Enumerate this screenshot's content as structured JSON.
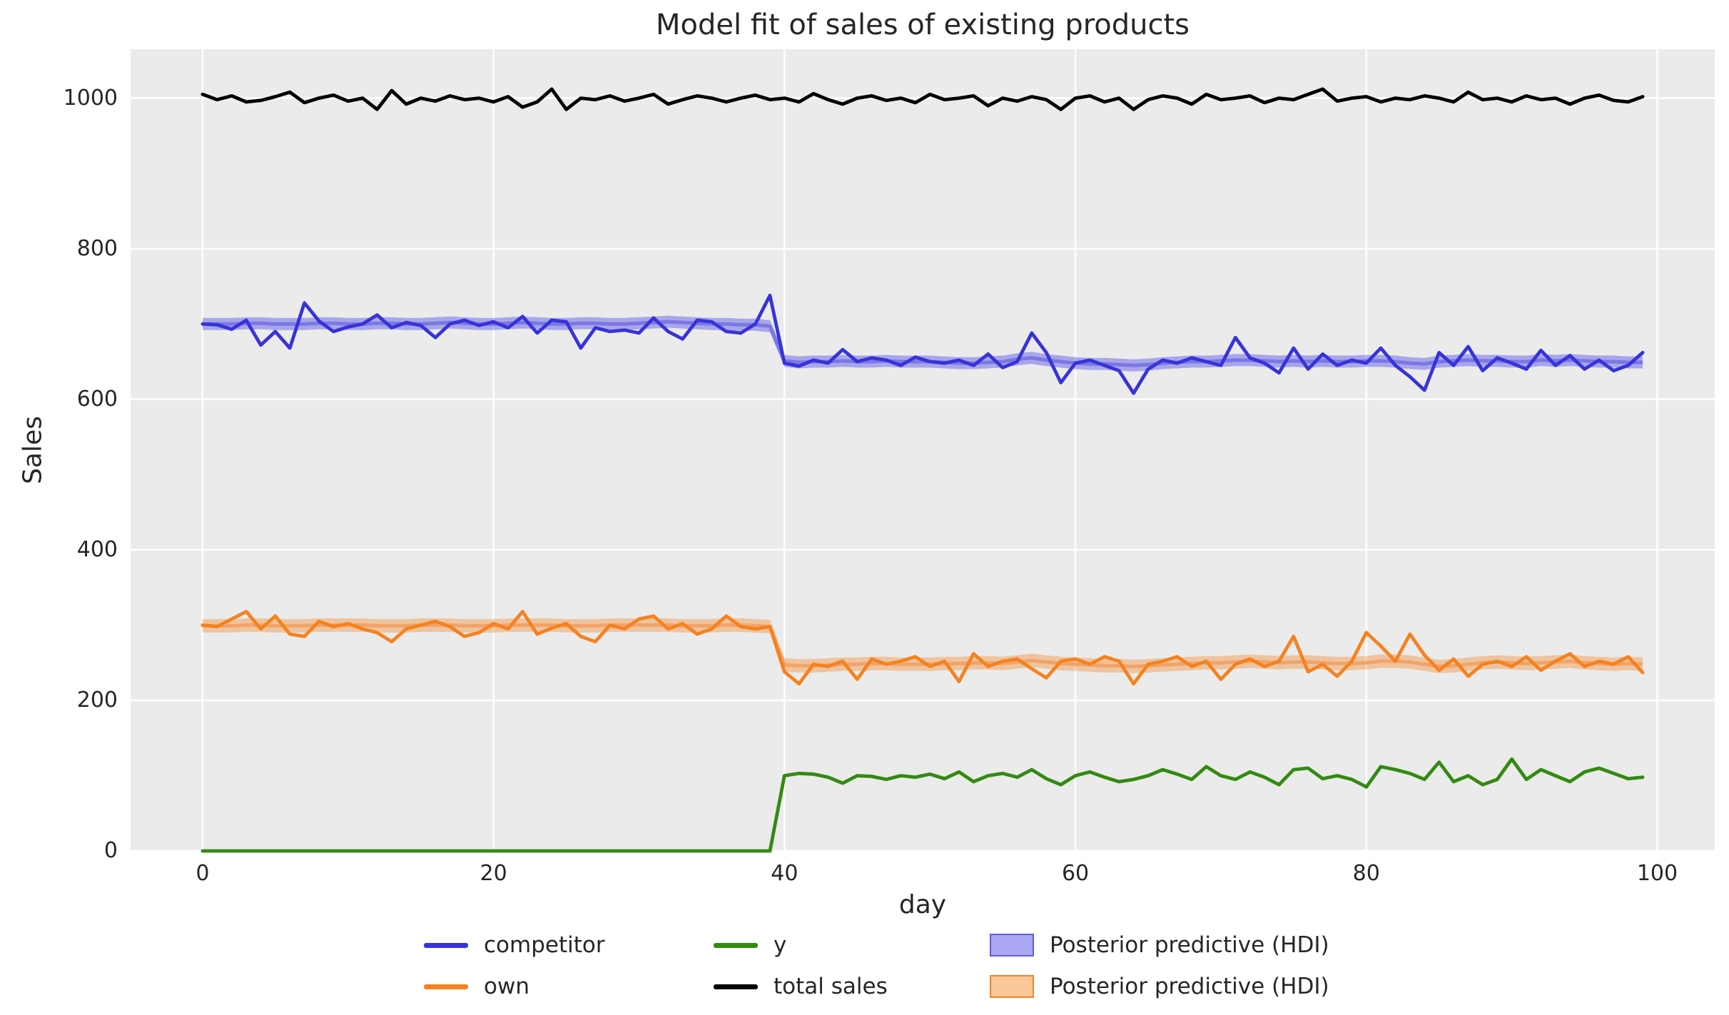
{
  "chart_data": {
    "type": "line",
    "title": "Model fit of sales of existing products",
    "xlabel": "day",
    "ylabel": "Sales",
    "xlim": [
      -4.95,
      103.95
    ],
    "ylim": [
      0,
      1065
    ],
    "x_ticks": [
      0,
      20,
      40,
      60,
      80,
      100
    ],
    "y_ticks": [
      0,
      200,
      400,
      600,
      800,
      1000
    ],
    "grid": true,
    "plot_background": "#ebebeb",
    "grid_color": "#ffffff",
    "legend_position": "below-axes",
    "x": [
      0,
      1,
      2,
      3,
      4,
      5,
      6,
      7,
      8,
      9,
      10,
      11,
      12,
      13,
      14,
      15,
      16,
      17,
      18,
      19,
      20,
      21,
      22,
      23,
      24,
      25,
      26,
      27,
      28,
      29,
      30,
      31,
      32,
      33,
      34,
      35,
      36,
      37,
      38,
      39,
      40,
      41,
      42,
      43,
      44,
      45,
      46,
      47,
      48,
      49,
      50,
      51,
      52,
      53,
      54,
      55,
      56,
      57,
      58,
      59,
      60,
      61,
      62,
      63,
      64,
      65,
      66,
      67,
      68,
      69,
      70,
      71,
      72,
      73,
      74,
      75,
      76,
      77,
      78,
      79,
      80,
      81,
      82,
      83,
      84,
      85,
      86,
      87,
      88,
      89,
      90,
      91,
      92,
      93,
      94,
      95,
      96,
      97,
      98,
      99
    ],
    "series": [
      {
        "name": "competitor",
        "color": "#3733d9",
        "values": [
          700,
          699,
          693,
          705,
          672,
          690,
          668,
          728,
          704,
          690,
          696,
          700,
          712,
          695,
          702,
          698,
          682,
          700,
          705,
          698,
          703,
          695,
          710,
          688,
          705,
          703,
          668,
          695,
          690,
          692,
          688,
          708,
          690,
          680,
          705,
          703,
          690,
          688,
          700,
          738,
          648,
          644,
          652,
          648,
          666,
          650,
          655,
          652,
          645,
          656,
          650,
          648,
          652,
          645,
          660,
          642,
          650,
          688,
          662,
          622,
          648,
          652,
          645,
          638,
          608,
          640,
          652,
          648,
          655,
          650,
          645,
          682,
          655,
          648,
          635,
          668,
          640,
          660,
          645,
          652,
          648,
          668,
          645,
          630,
          612,
          662,
          645,
          670,
          638,
          655,
          648,
          640,
          665,
          645,
          658,
          640,
          652,
          638,
          645,
          662
        ]
      },
      {
        "name": "own",
        "color": "#f5821f",
        "values": [
          300,
          298,
          308,
          318,
          295,
          312,
          288,
          285,
          305,
          298,
          302,
          295,
          290,
          278,
          295,
          300,
          305,
          298,
          285,
          290,
          302,
          295,
          318,
          288,
          296,
          302,
          285,
          278,
          300,
          295,
          308,
          312,
          295,
          302,
          288,
          295,
          312,
          298,
          295,
          298,
          238,
          222,
          248,
          245,
          252,
          228,
          255,
          248,
          252,
          258,
          245,
          252,
          225,
          262,
          245,
          252,
          255,
          242,
          230,
          252,
          255,
          248,
          258,
          252,
          222,
          248,
          252,
          258,
          245,
          252,
          228,
          248,
          255,
          245,
          252,
          285,
          238,
          248,
          232,
          252,
          290,
          272,
          252,
          288,
          260,
          240,
          255,
          232,
          248,
          252,
          245,
          258,
          240,
          252,
          262,
          245,
          252,
          248,
          258,
          237
        ]
      },
      {
        "name": "y",
        "color": "#338a11",
        "values": [
          0,
          0,
          0,
          0,
          0,
          0,
          0,
          0,
          0,
          0,
          0,
          0,
          0,
          0,
          0,
          0,
          0,
          0,
          0,
          0,
          0,
          0,
          0,
          0,
          0,
          0,
          0,
          0,
          0,
          0,
          0,
          0,
          0,
          0,
          0,
          0,
          0,
          0,
          0,
          0,
          100,
          103,
          102,
          98,
          90,
          100,
          99,
          95,
          100,
          98,
          102,
          96,
          105,
          92,
          100,
          103,
          98,
          108,
          96,
          88,
          100,
          105,
          98,
          92,
          95,
          100,
          108,
          102,
          95,
          112,
          100,
          95,
          105,
          98,
          88,
          108,
          110,
          96,
          100,
          95,
          85,
          112,
          108,
          103,
          95,
          118,
          92,
          100,
          88,
          95,
          122,
          95,
          108,
          100,
          92,
          105,
          110,
          103,
          96,
          98
        ]
      },
      {
        "name": "total sales",
        "color": "#000000",
        "values": [
          1005,
          998,
          1003,
          995,
          997,
          1002,
          1008,
          994,
          1000,
          1004,
          996,
          1000,
          985,
          1010,
          992,
          1000,
          996,
          1003,
          998,
          1000,
          995,
          1002,
          988,
          995,
          1012,
          985,
          1000,
          998,
          1003,
          996,
          1000,
          1005,
          992,
          998,
          1003,
          1000,
          995,
          1000,
          1004,
          998,
          1000,
          995,
          1006,
          998,
          992,
          1000,
          1003,
          997,
          1000,
          994,
          1005,
          998,
          1000,
          1003,
          990,
          1000,
          996,
          1002,
          998,
          985,
          1000,
          1003,
          995,
          1000,
          985,
          998,
          1003,
          1000,
          992,
          1005,
          998,
          1000,
          1003,
          994,
          1000,
          998,
          1005,
          1012,
          996,
          1000,
          1002,
          995,
          1000,
          998,
          1003,
          1000,
          995,
          1008,
          998,
          1000,
          995,
          1003,
          998,
          1000,
          992,
          1000,
          1004,
          997,
          995,
          1002
        ]
      }
    ],
    "bands": [
      {
        "name": "Posterior predictive (HDI)",
        "series": "competitor",
        "fill": "rgba(86,82,233,0.45)",
        "mean_color": "#7b77e4",
        "half_width": 8,
        "mean": [
          700,
          700,
          700,
          701,
          701,
          700,
          700,
          700,
          701,
          701,
          700,
          700,
          701,
          701,
          700,
          700,
          701,
          702,
          701,
          700,
          700,
          701,
          702,
          701,
          700,
          700,
          701,
          701,
          700,
          700,
          701,
          702,
          703,
          702,
          701,
          700,
          700,
          699,
          699,
          697,
          651,
          649,
          650,
          650,
          651,
          650,
          650,
          651,
          650,
          650,
          650,
          649,
          648,
          648,
          649,
          650,
          653,
          655,
          652,
          650,
          648,
          647,
          647,
          646,
          645,
          646,
          648,
          649,
          650,
          650,
          651,
          652,
          652,
          651,
          650,
          651,
          650,
          651,
          650,
          650,
          651,
          651,
          650,
          648,
          647,
          650,
          651,
          652,
          651,
          651,
          650,
          650,
          652,
          651,
          652,
          651,
          650,
          650,
          649,
          649
        ]
      },
      {
        "name": "Posterior predictive (HDI)",
        "series": "own",
        "fill": "rgba(245,130,30,0.37)",
        "mean_color": "#f2a369",
        "half_width": 9,
        "mean": [
          299,
          299,
          299,
          300,
          300,
          299,
          299,
          299,
          300,
          300,
          300,
          300,
          299,
          299,
          299,
          300,
          300,
          300,
          299,
          299,
          299,
          300,
          300,
          300,
          300,
          299,
          299,
          299,
          300,
          300,
          300,
          300,
          300,
          299,
          299,
          299,
          300,
          300,
          299,
          298,
          247,
          246,
          246,
          247,
          248,
          248,
          249,
          249,
          248,
          248,
          248,
          249,
          249,
          250,
          250,
          249,
          251,
          253,
          251,
          249,
          248,
          247,
          246,
          246,
          245,
          246,
          247,
          248,
          249,
          250,
          250,
          251,
          252,
          251,
          250,
          251,
          251,
          250,
          249,
          249,
          250,
          252,
          252,
          251,
          248,
          245,
          246,
          248,
          250,
          251,
          250,
          249,
          250,
          251,
          252,
          250,
          249,
          248,
          249,
          248
        ]
      }
    ]
  },
  "legend": {
    "items": [
      {
        "label": "competitor",
        "swatch": "line",
        "color": "#3733d9"
      },
      {
        "label": "own",
        "swatch": "line",
        "color": "#f5821f"
      },
      {
        "label": "y",
        "swatch": "line",
        "color": "#338a11"
      },
      {
        "label": "total sales",
        "swatch": "line",
        "color": "#000000"
      },
      {
        "label": "Posterior predictive (HDI)",
        "swatch": "patch",
        "fill": "rgba(86,82,233,0.5)",
        "border": "#5f5ae8"
      },
      {
        "label": "Posterior predictive (HDI)",
        "swatch": "patch",
        "fill": "rgba(245,130,30,0.45)",
        "border": "#f5821f"
      }
    ]
  }
}
